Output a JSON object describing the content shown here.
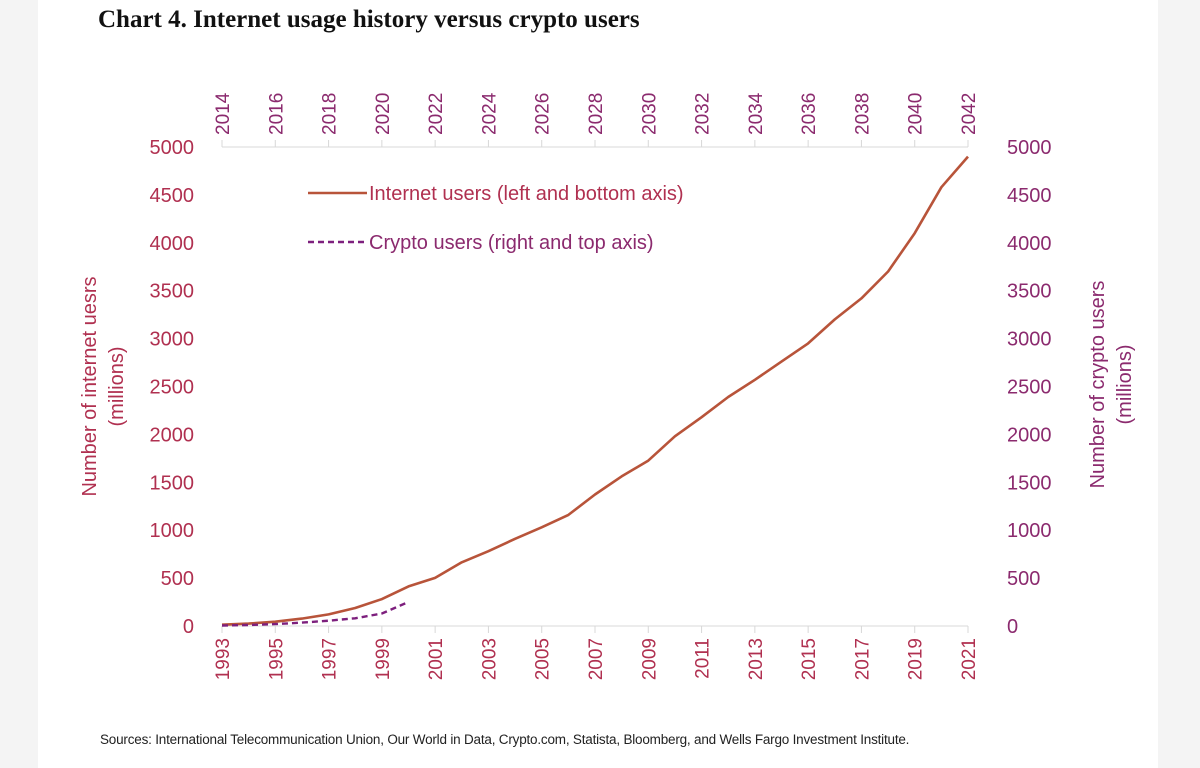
{
  "title": "Chart 4. Internet usage history versus crypto users",
  "source": "Sources: International Telecommunication Union, Our World in Data, Crypto.com, Statista, Bloomberg, and Wells Fargo Investment Institute.",
  "colors": {
    "internet": "#b8543a",
    "crypto": "#7d1f7d",
    "axis_text_left": "#b03050",
    "axis_text_right": "#8b2a6e",
    "grid": "#d8d8d8"
  },
  "chart_data": {
    "type": "line",
    "title": "Chart 4. Internet usage history versus crypto users",
    "bottom_axis": {
      "ticks": [
        "1993",
        "1995",
        "1997",
        "1999",
        "2001",
        "2003",
        "2005",
        "2007",
        "2009",
        "2011",
        "2013",
        "2015",
        "2017",
        "2019",
        "2021"
      ],
      "range": [
        1993,
        2021
      ]
    },
    "top_axis": {
      "ticks": [
        "2014",
        "2016",
        "2018",
        "2020",
        "2022",
        "2024",
        "2026",
        "2028",
        "2030",
        "2032",
        "2034",
        "2036",
        "2038",
        "2040",
        "2042"
      ],
      "range": [
        2014,
        2042
      ]
    },
    "left_axis": {
      "label": "Number of internet uesrs",
      "sublabel": "(millions)",
      "ticks": [
        "0",
        "500",
        "1000",
        "1500",
        "2000",
        "2500",
        "3000",
        "3500",
        "4000",
        "4500",
        "5000"
      ],
      "ylim": [
        0,
        5000
      ]
    },
    "right_axis": {
      "label": "Number of crypto users",
      "sublabel": "(millions)",
      "ticks": [
        "0",
        "500",
        "1000",
        "1500",
        "2000",
        "2500",
        "3000",
        "3500",
        "4000",
        "4500",
        "5000"
      ],
      "ylim": [
        0,
        5000
      ]
    },
    "series": [
      {
        "name": "Internet users (left and bottom axis)",
        "axes": "left-bottom",
        "style": "solid",
        "x": [
          1993,
          1994,
          1995,
          1996,
          1997,
          1998,
          1999,
          2000,
          2001,
          2002,
          2003,
          2004,
          2005,
          2006,
          2007,
          2008,
          2009,
          2010,
          2011,
          2012,
          2013,
          2014,
          2015,
          2016,
          2017,
          2018,
          2019,
          2020,
          2021
        ],
        "values": [
          14,
          25,
          45,
          77,
          121,
          188,
          281,
          413,
          502,
          665,
          781,
          910,
          1030,
          1160,
          1373,
          1562,
          1727,
          1980,
          2180,
          2390,
          2570,
          2760,
          2950,
          3200,
          3420,
          3700,
          4100,
          4580,
          4900
        ]
      },
      {
        "name": "Crypto users (right and top axis)",
        "axes": "right-top",
        "style": "dashed",
        "x": [
          2014,
          2015,
          2016,
          2017,
          2018,
          2019,
          2020,
          2021
        ],
        "values": [
          5,
          10,
          20,
          35,
          55,
          80,
          130,
          250
        ]
      }
    ],
    "legend_position": "upper-left inside plot"
  }
}
